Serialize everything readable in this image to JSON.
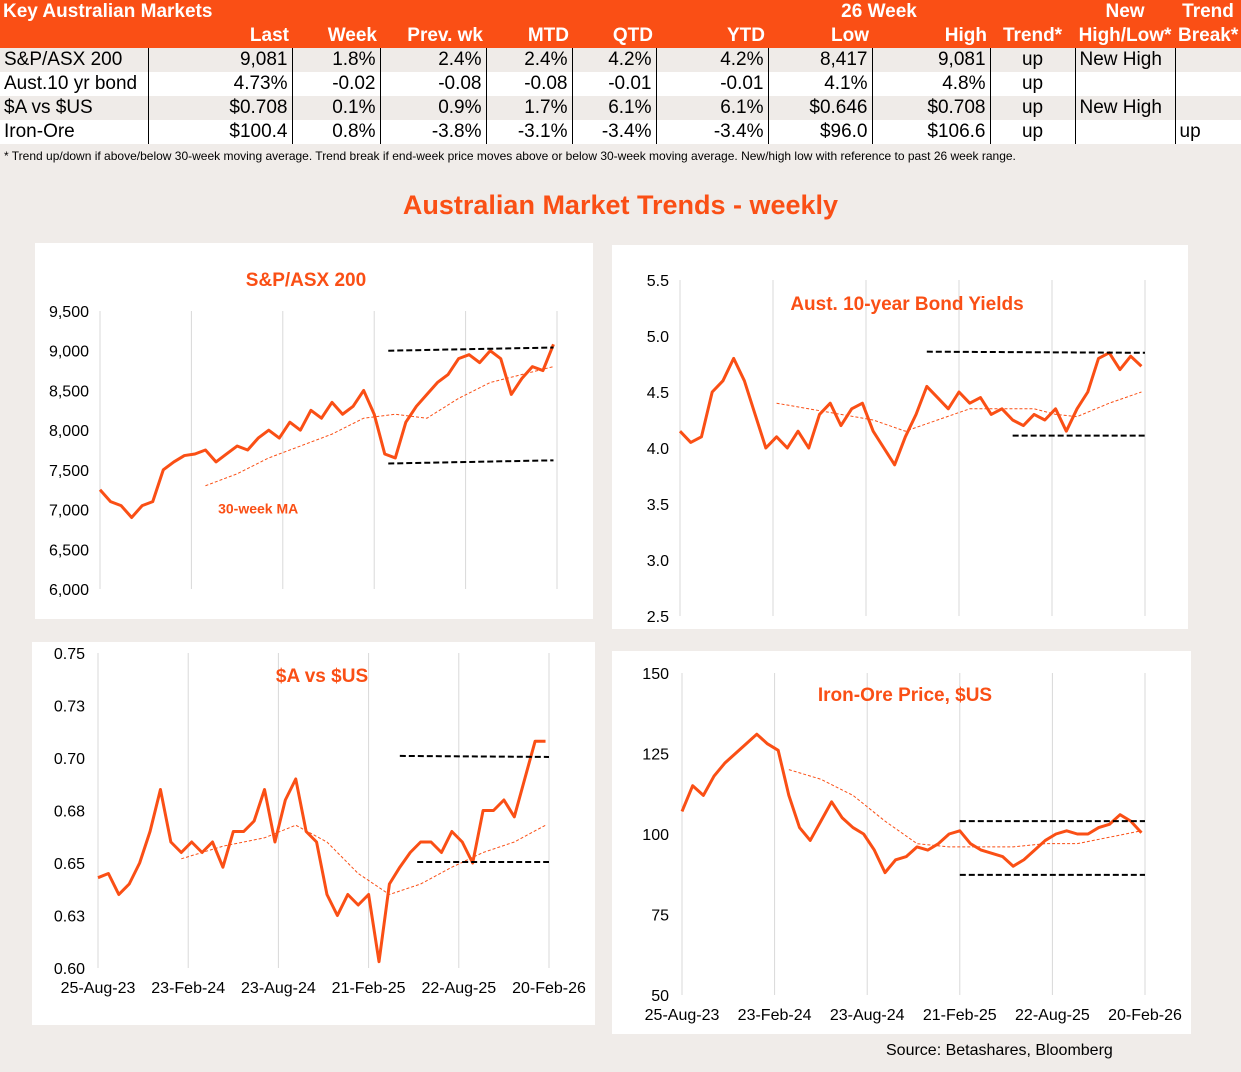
{
  "table": {
    "title": "Key Australian Markets",
    "group_header": "26 Week",
    "header_top": {
      "new": "New",
      "trend_break": "Trend"
    },
    "headers": [
      "Last",
      "Week",
      "Prev. wk",
      "MTD",
      "QTD",
      "YTD",
      "Low",
      "High",
      "Trend*",
      "High/Low*",
      "Break*"
    ],
    "rows": [
      [
        "S&P/ASX 200",
        "9,081",
        "1.8%",
        "2.4%",
        "2.4%",
        "4.2%",
        "4.2%",
        "8,417",
        "9,081",
        "up",
        "New High",
        ""
      ],
      [
        "Aust.10 yr bond",
        "4.73%",
        "-0.02",
        "-0.08",
        "-0.08",
        "-0.01",
        "-0.01",
        "4.1%",
        "4.8%",
        "up",
        "",
        ""
      ],
      [
        "$A vs $US",
        "$0.708",
        "0.1%",
        "0.9%",
        "1.7%",
        "6.1%",
        "6.1%",
        "$0.646",
        "$0.708",
        "up",
        "New High",
        ""
      ],
      [
        "Iron-Ore",
        "$100.4",
        "0.8%",
        "-3.8%",
        "-3.1%",
        "-3.4%",
        "-3.4%",
        "$96.0",
        "$106.6",
        "up",
        "",
        "up"
      ]
    ],
    "footnote": "*  Trend up/down if above/below 30-week moving average. Trend break if end-week price moves above or below 30-week moving average.  New/high low with reference to past 26 week range."
  },
  "page_title": "Australian Market Trends - weekly",
  "source": "Source:  Betashares, Bloomberg",
  "colors": {
    "accent": "#fa4f15",
    "line": "#fa4f15",
    "dashed": "#000000"
  },
  "chart_data": [
    {
      "type": "line",
      "title": "S&P/ASX 200",
      "ylim": [
        6000,
        9500
      ],
      "yticks": [
        6000,
        6500,
        7000,
        7500,
        8000,
        8500,
        9000,
        9500
      ],
      "ytick_labels": [
        "6,000",
        "6,500",
        "7,000",
        "7,500",
        "8,000",
        "8,500",
        "9,000",
        "9,500"
      ],
      "xlim": [
        0,
        130
      ],
      "xticks": [
        0,
        26,
        52,
        78,
        104,
        130
      ],
      "xtick_labels": [],
      "x": [
        0,
        3,
        6,
        9,
        12,
        15,
        18,
        21,
        24,
        27,
        30,
        33,
        36,
        39,
        42,
        45,
        48,
        51,
        54,
        57,
        60,
        63,
        66,
        69,
        72,
        75,
        78,
        81,
        84,
        87,
        90,
        93,
        96,
        99,
        102,
        105,
        108,
        111,
        114,
        117,
        120,
        123,
        126,
        129
      ],
      "values": [
        7250,
        7100,
        7050,
        6900,
        7050,
        7100,
        7500,
        7600,
        7680,
        7700,
        7750,
        7600,
        7700,
        7800,
        7750,
        7900,
        8000,
        7900,
        8100,
        8000,
        8250,
        8150,
        8350,
        8200,
        8300,
        8500,
        8200,
        7700,
        7650,
        8100,
        8300,
        8450,
        8600,
        8700,
        8900,
        8950,
        8850,
        9000,
        8900,
        8450,
        8650,
        8800,
        8750,
        9081
      ],
      "ma": {
        "name": "30-week MA",
        "x": [
          30,
          39,
          48,
          57,
          66,
          75,
          84,
          93,
          102,
          111,
          120,
          129
        ],
        "values": [
          7300,
          7450,
          7650,
          7800,
          7950,
          8150,
          8200,
          8150,
          8400,
          8600,
          8700,
          8800
        ]
      },
      "trend_lines": [
        {
          "x": [
            82,
            129
          ],
          "y": [
            9000,
            9040
          ]
        },
        {
          "x": [
            82,
            129
          ],
          "y": [
            7580,
            7620
          ]
        }
      ],
      "annotation": "30-week MA"
    },
    {
      "type": "line",
      "title": "Aust. 10-year Bond Yields",
      "ylim": [
        2.5,
        5.5
      ],
      "yticks": [
        2.5,
        3,
        3.5,
        4,
        4.5,
        5,
        5.5
      ],
      "ytick_labels": [
        "2.5",
        "3.0",
        "3.5",
        "4.0",
        "4.5",
        "5.0",
        "5.5"
      ],
      "xlim": [
        0,
        130
      ],
      "xticks": [
        0,
        26,
        52,
        78,
        104,
        130
      ],
      "xtick_labels": [],
      "x": [
        0,
        3,
        6,
        9,
        12,
        15,
        18,
        21,
        24,
        27,
        30,
        33,
        36,
        39,
        42,
        45,
        48,
        51,
        54,
        57,
        60,
        63,
        66,
        69,
        72,
        75,
        78,
        81,
        84,
        87,
        90,
        93,
        96,
        99,
        102,
        105,
        108,
        111,
        114,
        117,
        120,
        123,
        126,
        129
      ],
      "values": [
        4.15,
        4.05,
        4.1,
        4.5,
        4.6,
        4.8,
        4.6,
        4.3,
        4.0,
        4.1,
        4.0,
        4.15,
        4.0,
        4.3,
        4.4,
        4.2,
        4.35,
        4.4,
        4.15,
        4.0,
        3.85,
        4.1,
        4.3,
        4.55,
        4.45,
        4.35,
        4.5,
        4.4,
        4.45,
        4.3,
        4.35,
        4.25,
        4.2,
        4.3,
        4.25,
        4.35,
        4.15,
        4.35,
        4.5,
        4.8,
        4.85,
        4.7,
        4.82,
        4.73
      ],
      "ma": {
        "name": "30-week MA",
        "x": [
          27,
          36,
          45,
          54,
          63,
          72,
          81,
          90,
          99,
          105,
          111,
          120,
          129
        ],
        "values": [
          4.4,
          4.35,
          4.3,
          4.25,
          4.15,
          4.25,
          4.35,
          4.35,
          4.35,
          4.3,
          4.28,
          4.4,
          4.5
        ]
      },
      "trend_lines": [
        {
          "x": [
            69,
            130
          ],
          "y": [
            4.86,
            4.85
          ]
        },
        {
          "x": [
            93,
            130
          ],
          "y": [
            4.11,
            4.11
          ]
        }
      ]
    },
    {
      "type": "line",
      "title": "$A vs $US",
      "ylim": [
        0.6,
        0.75
      ],
      "yticks": [
        0.6,
        0.625,
        0.65,
        0.675,
        0.7,
        0.725,
        0.75
      ],
      "ytick_labels": [
        "0.60",
        "0.63",
        "0.65",
        "0.68",
        "0.70",
        "0.73",
        "0.75"
      ],
      "xlim": [
        0,
        130
      ],
      "xticks": [
        0,
        26,
        52,
        78,
        104,
        130
      ],
      "xtick_labels": [
        "25-Aug-23",
        "23-Feb-24",
        "23-Aug-24",
        "21-Feb-25",
        "22-Aug-25",
        "20-Feb-26"
      ],
      "x": [
        0,
        3,
        6,
        9,
        12,
        15,
        18,
        21,
        24,
        27,
        30,
        33,
        36,
        39,
        42,
        45,
        48,
        51,
        54,
        57,
        60,
        63,
        66,
        69,
        72,
        75,
        78,
        81,
        84,
        87,
        90,
        93,
        96,
        99,
        102,
        105,
        108,
        111,
        114,
        117,
        120,
        123,
        126,
        129
      ],
      "values": [
        0.643,
        0.645,
        0.635,
        0.64,
        0.65,
        0.665,
        0.685,
        0.66,
        0.655,
        0.66,
        0.655,
        0.66,
        0.648,
        0.665,
        0.665,
        0.67,
        0.685,
        0.66,
        0.68,
        0.69,
        0.665,
        0.66,
        0.635,
        0.625,
        0.635,
        0.63,
        0.635,
        0.603,
        0.64,
        0.648,
        0.655,
        0.66,
        0.66,
        0.655,
        0.665,
        0.66,
        0.65,
        0.675,
        0.675,
        0.68,
        0.672,
        0.69,
        0.708,
        0.708
      ],
      "ma": {
        "name": "30-week MA",
        "x": [
          24,
          36,
          48,
          57,
          66,
          75,
          84,
          93,
          102,
          111,
          120,
          129
        ],
        "values": [
          0.652,
          0.658,
          0.662,
          0.668,
          0.66,
          0.645,
          0.635,
          0.64,
          0.648,
          0.655,
          0.66,
          0.668
        ]
      },
      "trend_lines": [
        {
          "x": [
            87,
            130
          ],
          "y": [
            0.701,
            0.7005
          ]
        },
        {
          "x": [
            92,
            130
          ],
          "y": [
            0.6505,
            0.6505
          ]
        }
      ]
    },
    {
      "type": "line",
      "title": "Iron-Ore Price, $US",
      "ylim": [
        50,
        150
      ],
      "yticks": [
        50,
        75,
        100,
        125,
        150
      ],
      "ytick_labels": [
        "50",
        "75",
        "100",
        "125",
        "150"
      ],
      "xlim": [
        0,
        130
      ],
      "xticks": [
        0,
        26,
        52,
        78,
        104,
        130
      ],
      "xtick_labels": [
        "25-Aug-23",
        "23-Feb-24",
        "23-Aug-24",
        "21-Feb-25",
        "22-Aug-25",
        "20-Feb-26"
      ],
      "x": [
        0,
        3,
        6,
        9,
        12,
        15,
        18,
        21,
        24,
        27,
        30,
        33,
        36,
        39,
        42,
        45,
        48,
        51,
        54,
        57,
        60,
        63,
        66,
        69,
        72,
        75,
        78,
        81,
        84,
        87,
        90,
        93,
        96,
        99,
        102,
        105,
        108,
        111,
        114,
        117,
        120,
        123,
        126,
        129
      ],
      "values": [
        107,
        115,
        112,
        118,
        122,
        125,
        128,
        131,
        128,
        126,
        112,
        102,
        98,
        104,
        110,
        105,
        102,
        100,
        95,
        88,
        92,
        93,
        96,
        95,
        97,
        100,
        101,
        97,
        95,
        94,
        93,
        90,
        92,
        95,
        98,
        100,
        101,
        100,
        100,
        102,
        103,
        106,
        104,
        100.4
      ],
      "ma": {
        "name": "30-week MA",
        "x": [
          30,
          39,
          48,
          57,
          66,
          75,
          84,
          93,
          102,
          111,
          120,
          129
        ],
        "values": [
          120,
          117,
          112,
          104,
          97,
          96,
          96,
          96,
          97,
          97,
          99,
          101
        ]
      },
      "trend_lines": [
        {
          "x": [
            78,
            130
          ],
          "y": [
            104,
            104
          ]
        },
        {
          "x": [
            78,
            130
          ],
          "y": [
            87.3,
            87.3
          ]
        }
      ]
    }
  ]
}
